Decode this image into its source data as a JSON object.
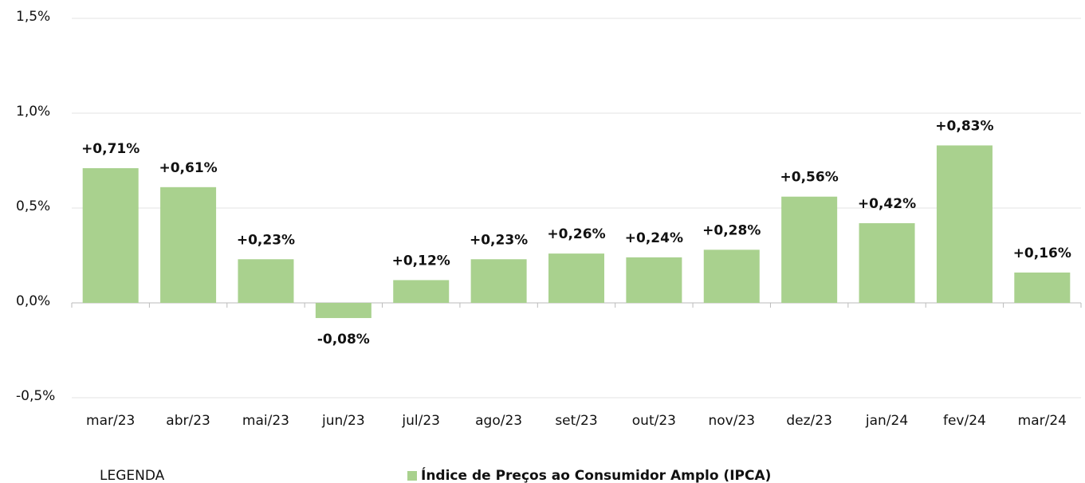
{
  "chart_data": {
    "type": "bar",
    "categories": [
      "mar/23",
      "abr/23",
      "mai/23",
      "jun/23",
      "jul/23",
      "ago/23",
      "set/23",
      "out/23",
      "nov/23",
      "dez/23",
      "jan/24",
      "fev/24",
      "mar/24"
    ],
    "series": [
      {
        "name": "Índice de Preços ao Consumidor Amplo (IPCA)",
        "color": "#a9d18e",
        "values": [
          0.71,
          0.61,
          0.23,
          -0.08,
          0.12,
          0.23,
          0.26,
          0.24,
          0.28,
          0.56,
          0.42,
          0.83,
          0.16
        ],
        "value_labels": [
          "+0,71%",
          "+0,61%",
          "+0,23%",
          "-0,08%",
          "+0,12%",
          "+0,23%",
          "+0,26%",
          "+0,24%",
          "+0,28%",
          "+0,56%",
          "+0,42%",
          "+0,83%",
          "+0,16%"
        ]
      }
    ],
    "ylim": [
      -0.5,
      1.5
    ],
    "yticks": [
      {
        "value": -0.5,
        "label": "-0,5%"
      },
      {
        "value": 0,
        "label": "0,0%"
      },
      {
        "value": 0.5,
        "label": "0,5%"
      },
      {
        "value": 1,
        "label": "1,0%"
      },
      {
        "value": 1.5,
        "label": "1,5%"
      }
    ],
    "grid": true,
    "legend_title": "LEGENDA"
  }
}
